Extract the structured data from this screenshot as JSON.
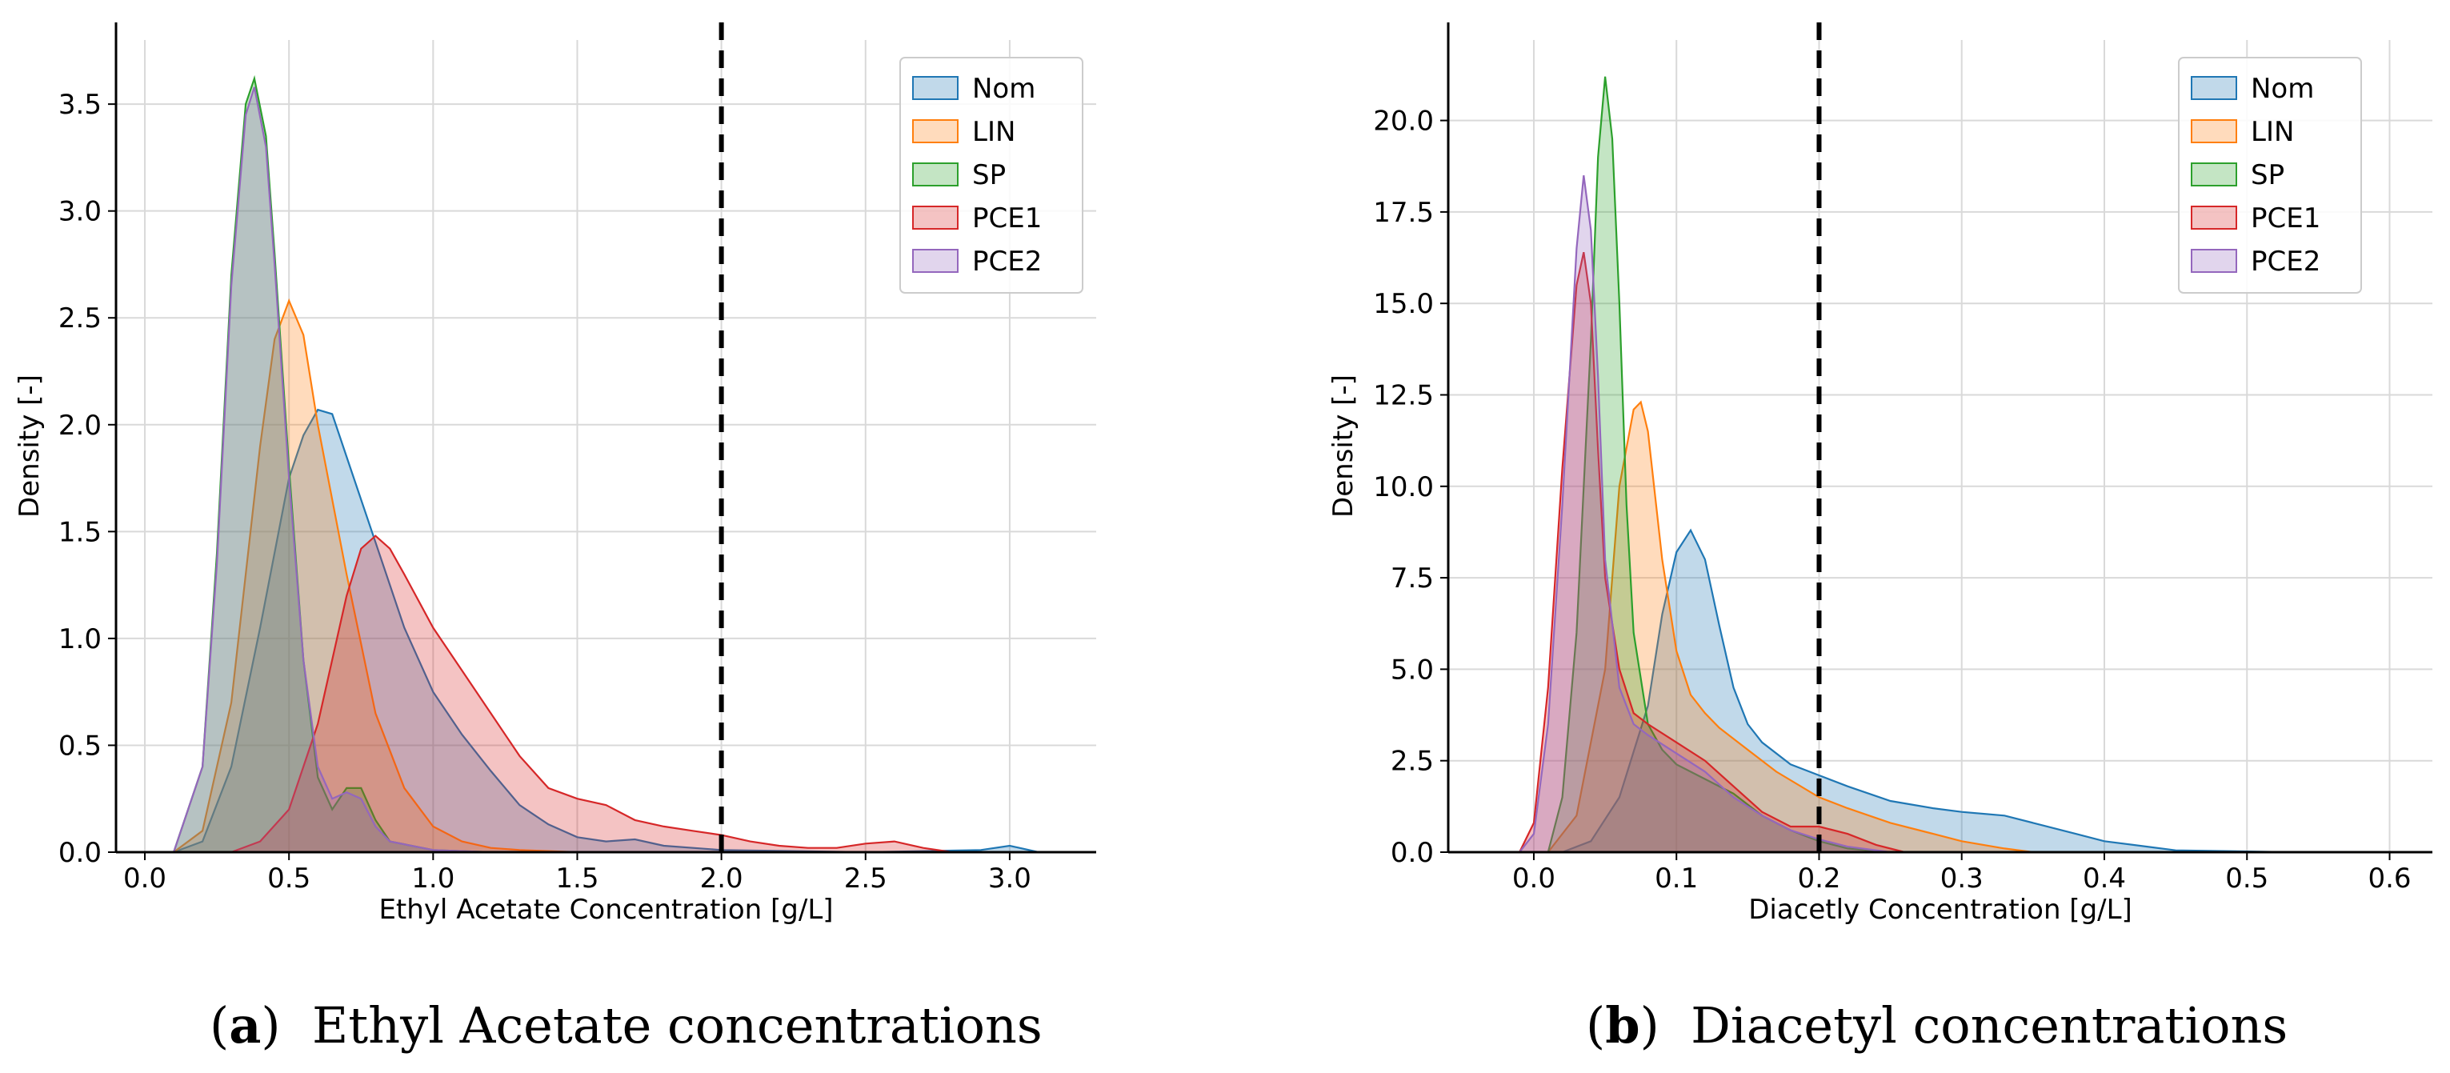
{
  "captions": [
    {
      "tag": "a",
      "text": "Ethyl Acetate concentrations"
    },
    {
      "tag": "b",
      "text": "Diacetyl concentrations"
    }
  ],
  "colors": {
    "Nom": "#1f77b4",
    "LIN": "#ff7f0e",
    "SP": "#2ca02c",
    "PCE1": "#d62728",
    "PCE2": "#9467bd",
    "threshold": "#000000"
  },
  "chart_data": [
    {
      "type": "area",
      "title": "",
      "xlabel": "Ethyl Acetate Concentration [g/L]",
      "ylabel": "Density [-]",
      "xlim": [
        -0.1,
        3.3
      ],
      "ylim": [
        0,
        3.8
      ],
      "xticks": [
        0.0,
        0.5,
        1.0,
        1.5,
        2.0,
        2.5,
        3.0
      ],
      "xtick_labels": [
        "0.0",
        "0.5",
        "1.0",
        "1.5",
        "2.0",
        "2.5",
        "3.0"
      ],
      "yticks": [
        0.0,
        0.5,
        1.0,
        1.5,
        2.0,
        2.5,
        3.0,
        3.5
      ],
      "ytick_labels": [
        "0.0",
        "0.5",
        "1.0",
        "1.5",
        "2.0",
        "2.5",
        "3.0",
        "3.5"
      ],
      "grid": true,
      "legend_position": "top-right",
      "threshold": 2.0,
      "series": [
        {
          "name": "Nom",
          "x": [
            0.1,
            0.2,
            0.3,
            0.4,
            0.5,
            0.55,
            0.6,
            0.65,
            0.7,
            0.8,
            0.9,
            1.0,
            1.1,
            1.2,
            1.3,
            1.4,
            1.5,
            1.6,
            1.7,
            1.8,
            2.0,
            2.5,
            2.9,
            3.0,
            3.1
          ],
          "y": [
            0,
            0.05,
            0.4,
            1.05,
            1.75,
            1.95,
            2.07,
            2.05,
            1.85,
            1.45,
            1.05,
            0.75,
            0.55,
            0.38,
            0.22,
            0.13,
            0.07,
            0.05,
            0.06,
            0.03,
            0.01,
            0,
            0.01,
            0.03,
            0
          ]
        },
        {
          "name": "LIN",
          "x": [
            0.1,
            0.2,
            0.3,
            0.35,
            0.4,
            0.45,
            0.5,
            0.55,
            0.6,
            0.7,
            0.8,
            0.9,
            1.0,
            1.1,
            1.2,
            1.3,
            1.5
          ],
          "y": [
            0,
            0.1,
            0.7,
            1.3,
            1.9,
            2.4,
            2.58,
            2.42,
            2.0,
            1.3,
            0.65,
            0.3,
            0.12,
            0.05,
            0.02,
            0.01,
            0
          ]
        },
        {
          "name": "SP",
          "x": [
            0.1,
            0.2,
            0.25,
            0.3,
            0.35,
            0.38,
            0.42,
            0.45,
            0.5,
            0.55,
            0.6,
            0.65,
            0.7,
            0.75,
            0.8,
            0.85,
            1.0,
            1.2
          ],
          "y": [
            0,
            0.4,
            1.4,
            2.7,
            3.5,
            3.62,
            3.35,
            2.8,
            1.8,
            0.9,
            0.35,
            0.2,
            0.3,
            0.3,
            0.15,
            0.05,
            0.01,
            0
          ]
        },
        {
          "name": "PCE1",
          "x": [
            0.3,
            0.4,
            0.5,
            0.6,
            0.7,
            0.75,
            0.8,
            0.85,
            0.9,
            1.0,
            1.1,
            1.2,
            1.3,
            1.4,
            1.5,
            1.6,
            1.7,
            1.8,
            1.9,
            2.0,
            2.1,
            2.2,
            2.3,
            2.4,
            2.5,
            2.6,
            2.7,
            2.8
          ],
          "y": [
            0,
            0.05,
            0.2,
            0.6,
            1.2,
            1.42,
            1.48,
            1.42,
            1.3,
            1.05,
            0.85,
            0.65,
            0.45,
            0.3,
            0.25,
            0.22,
            0.15,
            0.12,
            0.1,
            0.08,
            0.05,
            0.03,
            0.02,
            0.02,
            0.04,
            0.05,
            0.02,
            0
          ]
        },
        {
          "name": "PCE2",
          "x": [
            0.1,
            0.2,
            0.25,
            0.3,
            0.35,
            0.38,
            0.42,
            0.45,
            0.5,
            0.55,
            0.6,
            0.65,
            0.7,
            0.75,
            0.8,
            0.85,
            1.0,
            1.2
          ],
          "y": [
            0,
            0.4,
            1.35,
            2.65,
            3.45,
            3.58,
            3.3,
            2.75,
            1.75,
            0.9,
            0.4,
            0.25,
            0.28,
            0.25,
            0.12,
            0.05,
            0.01,
            0
          ]
        }
      ]
    },
    {
      "type": "area",
      "title": "",
      "xlabel": "Diacetly Concentration [g/L]",
      "ylabel": "Density [-]",
      "xlim": [
        -0.06,
        0.63
      ],
      "ylim": [
        0,
        22.2
      ],
      "xticks": [
        0.0,
        0.1,
        0.2,
        0.3,
        0.4,
        0.5,
        0.6
      ],
      "xtick_labels": [
        "0.0",
        "0.1",
        "0.2",
        "0.3",
        "0.4",
        "0.5",
        "0.6"
      ],
      "yticks": [
        0.0,
        2.5,
        5.0,
        7.5,
        10.0,
        12.5,
        15.0,
        17.5,
        20.0
      ],
      "ytick_labels": [
        "0.0",
        "2.5",
        "5.0",
        "7.5",
        "10.0",
        "12.5",
        "15.0",
        "17.5",
        "20.0"
      ],
      "grid": true,
      "legend_position": "top-right",
      "threshold": 0.2,
      "series": [
        {
          "name": "Nom",
          "x": [
            0.02,
            0.04,
            0.06,
            0.08,
            0.09,
            0.1,
            0.11,
            0.12,
            0.13,
            0.14,
            0.15,
            0.16,
            0.18,
            0.2,
            0.22,
            0.25,
            0.28,
            0.3,
            0.33,
            0.35,
            0.38,
            0.4,
            0.43,
            0.45,
            0.5,
            0.53
          ],
          "y": [
            0,
            0.3,
            1.5,
            4.0,
            6.5,
            8.2,
            8.8,
            8.0,
            6.2,
            4.5,
            3.5,
            3.0,
            2.4,
            2.1,
            1.8,
            1.4,
            1.2,
            1.1,
            1.0,
            0.8,
            0.5,
            0.3,
            0.15,
            0.05,
            0.02,
            0
          ]
        },
        {
          "name": "LIN",
          "x": [
            0.01,
            0.03,
            0.05,
            0.06,
            0.07,
            0.075,
            0.08,
            0.09,
            0.1,
            0.11,
            0.12,
            0.13,
            0.15,
            0.17,
            0.2,
            0.22,
            0.25,
            0.28,
            0.3,
            0.33,
            0.35
          ],
          "y": [
            0,
            1.0,
            5.0,
            10.0,
            12.1,
            12.3,
            11.5,
            8.0,
            5.5,
            4.3,
            3.8,
            3.4,
            2.8,
            2.2,
            1.5,
            1.2,
            0.8,
            0.5,
            0.3,
            0.1,
            0
          ]
        },
        {
          "name": "SP",
          "x": [
            0.01,
            0.02,
            0.03,
            0.04,
            0.045,
            0.05,
            0.055,
            0.06,
            0.065,
            0.07,
            0.08,
            0.09,
            0.1,
            0.12,
            0.14,
            0.16,
            0.18,
            0.2,
            0.22,
            0.25
          ],
          "y": [
            0,
            1.5,
            6.0,
            14.0,
            19.0,
            21.2,
            19.5,
            15.0,
            9.5,
            6.0,
            3.5,
            2.8,
            2.4,
            2.0,
            1.6,
            1.0,
            0.6,
            0.3,
            0.1,
            0
          ]
        },
        {
          "name": "PCE1",
          "x": [
            -0.01,
            0.0,
            0.01,
            0.02,
            0.03,
            0.035,
            0.04,
            0.045,
            0.05,
            0.06,
            0.07,
            0.08,
            0.1,
            0.12,
            0.14,
            0.16,
            0.18,
            0.2,
            0.22,
            0.24,
            0.26
          ],
          "y": [
            0,
            0.8,
            4.5,
            10.5,
            15.5,
            16.4,
            15.0,
            11.0,
            7.5,
            5.0,
            3.8,
            3.5,
            3.0,
            2.5,
            1.8,
            1.1,
            0.7,
            0.7,
            0.5,
            0.2,
            0
          ]
        },
        {
          "name": "PCE2",
          "x": [
            -0.01,
            0.0,
            0.01,
            0.02,
            0.03,
            0.035,
            0.04,
            0.045,
            0.05,
            0.06,
            0.07,
            0.08,
            0.1,
            0.12,
            0.14,
            0.16,
            0.18,
            0.2,
            0.22,
            0.25
          ],
          "y": [
            0,
            0.5,
            3.5,
            9.5,
            16.5,
            18.5,
            17.0,
            13.0,
            8.0,
            4.5,
            3.5,
            3.2,
            2.7,
            2.2,
            1.5,
            1.0,
            0.6,
            0.35,
            0.15,
            0
          ]
        }
      ]
    }
  ]
}
